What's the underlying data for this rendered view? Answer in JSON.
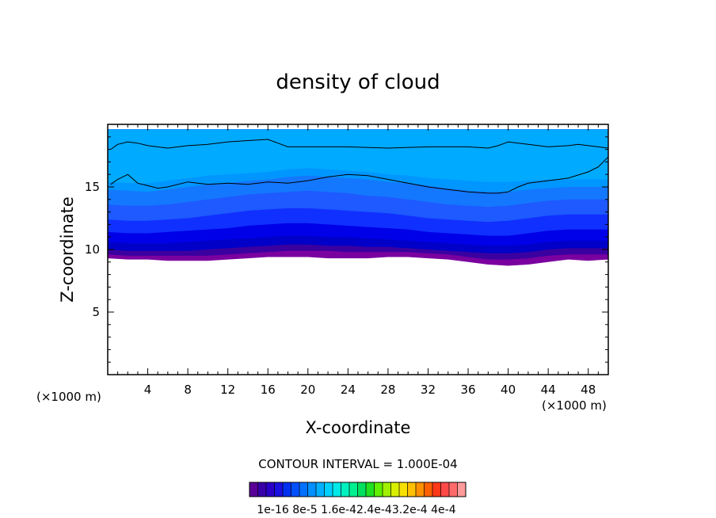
{
  "chart_data": {
    "type": "heatmap",
    "title": "density of cloud",
    "xlabel": "X-coordinate",
    "ylabel": "Z-coordinate",
    "x_unit_label_left": "(×1000 m)",
    "x_unit_label_right": "(×1000 m)",
    "xlim": [
      0,
      50
    ],
    "ylim": [
      0,
      20
    ],
    "x_ticks": [
      4,
      8,
      12,
      16,
      20,
      24,
      28,
      32,
      36,
      40,
      44,
      48
    ],
    "y_ticks": [
      5,
      10,
      15
    ],
    "contour_interval_text": "CONTOUR INTERVAL = 1.000E-04",
    "colorbar": {
      "colors": [
        "#5a0098",
        "#3800a8",
        "#2a00c8",
        "#1a10e0",
        "#0030f0",
        "#0050ff",
        "#0070ff",
        "#0090ff",
        "#00b0ff",
        "#00d0ff",
        "#00e8e8",
        "#00f0c0",
        "#00f090",
        "#00e060",
        "#20e020",
        "#60f000",
        "#a0f000",
        "#d8f000",
        "#f8e000",
        "#ffc000",
        "#ff9000",
        "#ff6000",
        "#ff3818",
        "#ff4848",
        "#ff6a6a",
        "#ff9a9a"
      ],
      "tick_labels": [
        "1e-16",
        "8e-5",
        "1.6e-4",
        "2.4e-4",
        "3.2e-4",
        "4e-4"
      ],
      "tick_label_text": "1e-16 8e-5 1.6e-42.4e-43.2e-4 4e-4"
    },
    "bands": [
      {
        "color": "#7a00a0",
        "lower_z": [
          9.3,
          9.2,
          9.2,
          9.1,
          9.1,
          9.1,
          9.2,
          9.3,
          9.4,
          9.4,
          9.4,
          9.3,
          9.3,
          9.3,
          9.4,
          9.4,
          9.3,
          9.2,
          9.0,
          8.8,
          8.7,
          8.8,
          9.0,
          9.2,
          9.1,
          9.2
        ]
      },
      {
        "color": "#3a00a0",
        "lower_z": [
          9.6,
          9.5,
          9.5,
          9.5,
          9.5,
          9.5,
          9.6,
          9.7,
          9.8,
          9.9,
          9.9,
          9.9,
          9.8,
          9.8,
          9.8,
          9.8,
          9.7,
          9.6,
          9.4,
          9.2,
          9.2,
          9.3,
          9.5,
          9.6,
          9.6,
          9.6
        ]
      },
      {
        "color": "#0000c8",
        "lower_z": [
          10.0,
          9.9,
          9.9,
          9.9,
          9.9,
          10.0,
          10.1,
          10.2,
          10.3,
          10.4,
          10.4,
          10.3,
          10.3,
          10.2,
          10.2,
          10.1,
          10.0,
          9.9,
          9.8,
          9.7,
          9.7,
          9.8,
          10.0,
          10.1,
          10.1,
          10.1
        ]
      },
      {
        "color": "#0000e8",
        "lower_z": [
          10.6,
          10.5,
          10.5,
          10.5,
          10.6,
          10.7,
          10.8,
          10.9,
          11.0,
          11.1,
          11.1,
          11.0,
          11.0,
          10.9,
          10.8,
          10.7,
          10.6,
          10.5,
          10.4,
          10.3,
          10.3,
          10.4,
          10.6,
          10.7,
          10.7,
          10.7
        ]
      },
      {
        "color": "#1030ff",
        "lower_z": [
          11.4,
          11.3,
          11.3,
          11.4,
          11.5,
          11.6,
          11.7,
          11.9,
          12.0,
          12.1,
          12.1,
          12.0,
          11.9,
          11.8,
          11.7,
          11.6,
          11.4,
          11.3,
          11.2,
          11.1,
          11.1,
          11.3,
          11.5,
          11.6,
          11.6,
          11.6
        ]
      },
      {
        "color": "#1e5aff",
        "lower_z": [
          12.4,
          12.3,
          12.3,
          12.4,
          12.5,
          12.7,
          12.9,
          13.1,
          13.2,
          13.3,
          13.3,
          13.2,
          13.1,
          13.0,
          12.9,
          12.7,
          12.5,
          12.4,
          12.3,
          12.2,
          12.3,
          12.5,
          12.7,
          12.8,
          12.8,
          12.8
        ]
      },
      {
        "color": "#1478ff",
        "lower_z": [
          13.6,
          13.5,
          13.5,
          13.6,
          13.8,
          14.0,
          14.2,
          14.4,
          14.5,
          14.6,
          14.7,
          14.6,
          14.5,
          14.3,
          14.2,
          14.0,
          13.8,
          13.6,
          13.5,
          13.4,
          13.5,
          13.7,
          13.9,
          14.0,
          14.0,
          14.0
        ]
      },
      {
        "color": "#0096ff",
        "lower_z": [
          14.8,
          14.7,
          14.6,
          14.8,
          15.0,
          15.2,
          15.3,
          15.5,
          15.6,
          15.8,
          15.9,
          15.8,
          15.7,
          15.6,
          15.4,
          15.3,
          15.1,
          14.9,
          14.7,
          14.6,
          14.6,
          14.8,
          14.9,
          15.0,
          15.0,
          15.0
        ]
      },
      {
        "color": "#00aaff",
        "lower_z": [
          15.4,
          15.3,
          15.3,
          15.5,
          15.7,
          15.9,
          16.0,
          16.1,
          16.2,
          16.4,
          16.5,
          16.4,
          16.3,
          16.2,
          16.0,
          15.9,
          15.7,
          15.6,
          15.5,
          15.4,
          15.4,
          15.5,
          15.6,
          15.6,
          15.6,
          15.6
        ]
      }
    ],
    "top_z": 19.6,
    "contour_lines": [
      {
        "label": "upper",
        "x": [
          0.3,
          1,
          2,
          3,
          4,
          6,
          8,
          10,
          12,
          14,
          16,
          17,
          18,
          20,
          24,
          28,
          32,
          36,
          38,
          39,
          40,
          42,
          44,
          46,
          47,
          48,
          49,
          50
        ],
        "z": [
          18.0,
          18.4,
          18.6,
          18.5,
          18.3,
          18.1,
          18.3,
          18.4,
          18.6,
          18.7,
          18.8,
          18.5,
          18.2,
          18.2,
          18.2,
          18.1,
          18.2,
          18.2,
          18.1,
          18.3,
          18.6,
          18.4,
          18.2,
          18.3,
          18.4,
          18.3,
          18.2,
          18.1
        ]
      },
      {
        "label": "lower",
        "x": [
          0.3,
          1,
          2,
          3,
          4,
          5,
          6,
          8,
          10,
          12,
          14,
          16,
          18,
          20,
          22,
          24,
          26,
          28,
          30,
          32,
          34,
          36,
          38,
          39,
          40,
          41,
          42,
          44,
          46,
          48,
          49,
          50
        ],
        "z": [
          15.2,
          15.6,
          16.0,
          15.3,
          15.1,
          14.9,
          15.0,
          15.4,
          15.2,
          15.3,
          15.2,
          15.4,
          15.3,
          15.5,
          15.8,
          16.0,
          15.9,
          15.6,
          15.3,
          15.0,
          14.8,
          14.6,
          14.5,
          14.5,
          14.6,
          15.0,
          15.3,
          15.5,
          15.7,
          16.2,
          16.6,
          17.4
        ]
      }
    ]
  }
}
